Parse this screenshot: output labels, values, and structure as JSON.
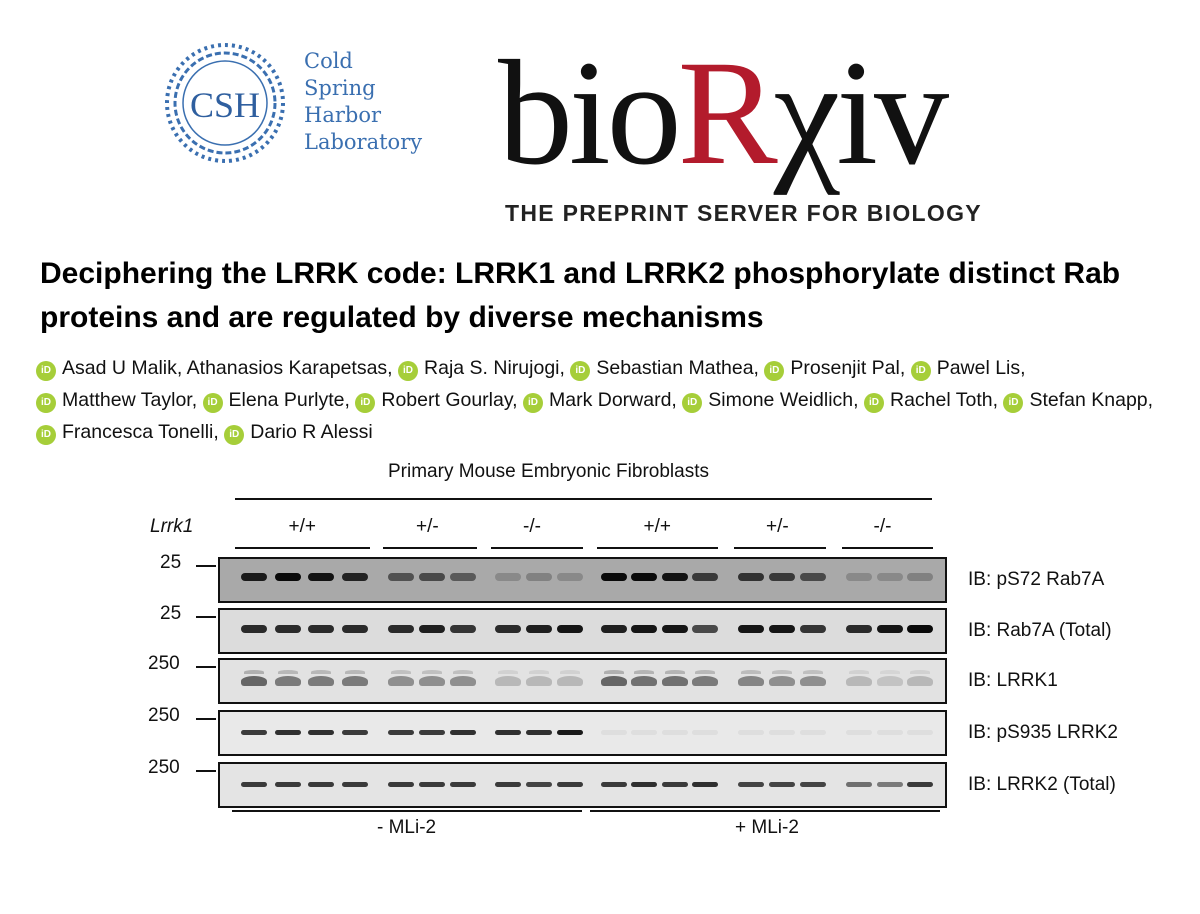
{
  "logos": {
    "csh": {
      "letters": "CSH",
      "lines": [
        "Cold",
        "Spring",
        "Harbor",
        "Laboratory"
      ],
      "color": "#3a6fb0"
    },
    "biorxiv": {
      "prefix": "bio",
      "r": "R",
      "suffix": "χiv",
      "tagline": "THE PREPRINT SERVER FOR BIOLOGY",
      "r_color": "#b31b2c"
    }
  },
  "paper": {
    "title": "Deciphering the LRRK code: LRRK1 and LRRK2 phosphorylate distinct Rab proteins and are regulated by diverse mechanisms",
    "orcid_icon_text": "iD",
    "orcid_color": "#a6ce39",
    "authors": [
      {
        "name": "Asad U Malik",
        "orcid": true
      },
      {
        "name": "Athanasios Karapetsas",
        "orcid": false
      },
      {
        "name": "Raja S. Nirujogi",
        "orcid": true
      },
      {
        "name": "Sebastian Mathea",
        "orcid": true
      },
      {
        "name": "Prosenjit Pal",
        "orcid": true
      },
      {
        "name": "Pawel Lis",
        "orcid": true
      },
      {
        "name": "Matthew Taylor",
        "orcid": true
      },
      {
        "name": "Elena Purlyte",
        "orcid": true
      },
      {
        "name": "Robert Gourlay",
        "orcid": true
      },
      {
        "name": "Mark Dorward",
        "orcid": true
      },
      {
        "name": "Simone Weidlich",
        "orcid": true
      },
      {
        "name": "Rachel Toth",
        "orcid": true
      },
      {
        "name": "Stefan Knapp",
        "orcid": true
      },
      {
        "name": "Francesca Tonelli",
        "orcid": true
      },
      {
        "name": "Dario R Alessi",
        "orcid": true
      }
    ]
  },
  "figure": {
    "header": "Primary Mouse Embryonic Fibroblasts",
    "genotype_label": "Lrrk1",
    "genotypes": [
      "+/+",
      "+/-",
      "-/-",
      "+/+",
      "+/-",
      "-/-"
    ],
    "treatments": [
      "- MLi-2",
      "+ MLi-2"
    ],
    "lanes_per_group": [
      4,
      3,
      3,
      4,
      3,
      3
    ],
    "blots": [
      {
        "marker": "25",
        "label": "IB: pS72 Rab7A",
        "background": "#a9a9a9",
        "intensities": [
          0.9,
          1.0,
          0.95,
          0.85,
          0.55,
          0.6,
          0.5,
          0.2,
          0.25,
          0.2,
          1.0,
          1.0,
          0.95,
          0.7,
          0.75,
          0.7,
          0.6,
          0.2,
          0.2,
          0.25
        ]
      },
      {
        "marker": "25",
        "label": "IB: Rab7A (Total)",
        "background": "#dcdcdc",
        "intensities": [
          0.85,
          0.85,
          0.85,
          0.85,
          0.85,
          0.9,
          0.8,
          0.85,
          0.9,
          0.95,
          0.9,
          0.95,
          0.95,
          0.7,
          0.95,
          0.95,
          0.8,
          0.85,
          0.95,
          1.0
        ]
      },
      {
        "marker": "250",
        "label": "IB: LRRK1",
        "background": "#e2e2e2",
        "intensities": [
          0.6,
          0.5,
          0.5,
          0.5,
          0.4,
          0.4,
          0.4,
          0.2,
          0.2,
          0.2,
          0.6,
          0.55,
          0.55,
          0.5,
          0.45,
          0.4,
          0.4,
          0.2,
          0.15,
          0.2
        ]
      },
      {
        "marker": "250",
        "label": "IB: pS935 LRRK2",
        "background": "#e9e9e9",
        "intensities": [
          0.8,
          0.85,
          0.85,
          0.8,
          0.8,
          0.8,
          0.85,
          0.85,
          0.85,
          0.95,
          0.05,
          0.05,
          0.05,
          0.05,
          0.05,
          0.05,
          0.05,
          0.05,
          0.05,
          0.05
        ]
      },
      {
        "marker": "250",
        "label": "IB: LRRK2 (Total)",
        "background": "#e4e4e4",
        "intensities": [
          0.8,
          0.8,
          0.8,
          0.8,
          0.8,
          0.8,
          0.8,
          0.8,
          0.75,
          0.8,
          0.8,
          0.85,
          0.8,
          0.85,
          0.75,
          0.75,
          0.75,
          0.55,
          0.5,
          0.8
        ]
      }
    ]
  }
}
